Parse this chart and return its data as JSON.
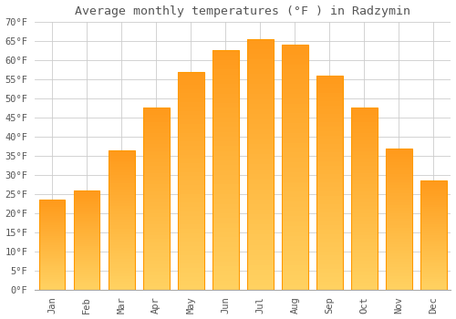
{
  "title": "Average monthly temperatures (°F ) in Radzymin",
  "months": [
    "Jan",
    "Feb",
    "Mar",
    "Apr",
    "May",
    "Jun",
    "Jul",
    "Aug",
    "Sep",
    "Oct",
    "Nov",
    "Dec"
  ],
  "values": [
    23.5,
    26.0,
    36.5,
    47.5,
    57.0,
    62.5,
    65.5,
    64.0,
    56.0,
    47.5,
    37.0,
    28.5
  ],
  "bar_color_top": "#FFA500",
  "bar_color_bottom": "#FFD060",
  "bar_edge_color": "#FF9900",
  "background_color": "#FFFFFF",
  "grid_color": "#CCCCCC",
  "text_color": "#555555",
  "ylim": [
    0,
    70
  ],
  "yticks": [
    0,
    5,
    10,
    15,
    20,
    25,
    30,
    35,
    40,
    45,
    50,
    55,
    60,
    65,
    70
  ],
  "title_fontsize": 9.5,
  "tick_fontsize": 7.5,
  "title_font": "monospace",
  "tick_font": "monospace"
}
